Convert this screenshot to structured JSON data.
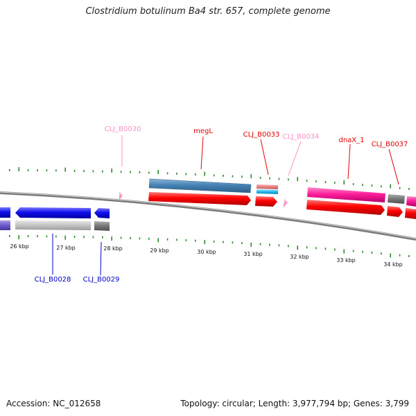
{
  "title": "Clostridium botulinum Ba4 str. 657, complete genome",
  "footer": {
    "accession": "Accession: NC_012658",
    "summary": "Topology: circular; Length: 3,977,794 bp; Genes: 3,799"
  },
  "ticks": [
    "26 kbp",
    "27 kbp",
    "28 kbp",
    "29 kbp",
    "30 kbp",
    "31 kbp",
    "32 kbp",
    "33 kbp",
    "34 kbp"
  ],
  "gene_labels": {
    "clj_b0030": "CLJ_B0030",
    "megl": "megL",
    "clj_b0033": "CLJ_B0033",
    "clj_b0034": "CLJ_B0034",
    "dnax_1": "dnaX_1",
    "clj_b0037": "CLJ_B0037",
    "clj_b0028": "CLJ_B0028",
    "clj_b0029": "CLJ_B0029"
  },
  "colors": {
    "red": "#ff0000",
    "blue": "#0000ee",
    "pink": "#ff8fc8",
    "magenta": "#ff1e9a",
    "steelblue": "#4682b4",
    "gray": "#8c8c8c",
    "lightgray": "#c8c8c8",
    "green": "#2e8b2e"
  }
}
